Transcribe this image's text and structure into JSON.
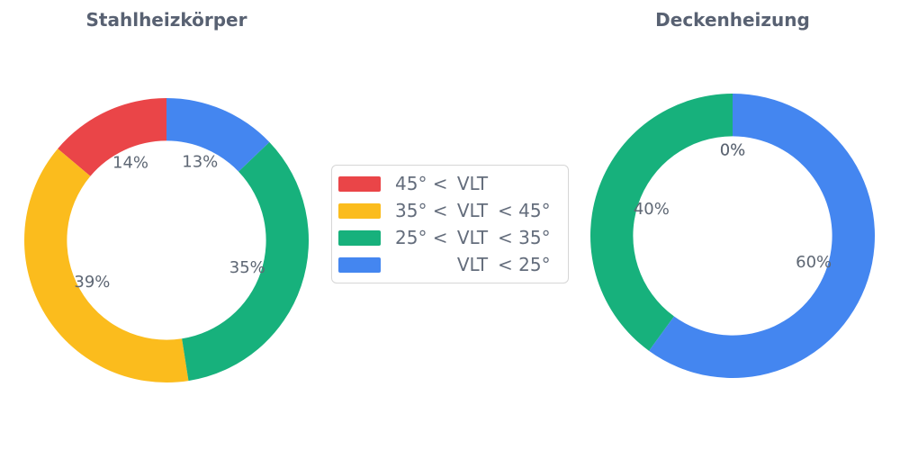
{
  "page": {
    "background_color": "#ffffff",
    "text_color": "#5E6774",
    "title_color": "#586172"
  },
  "chart_data": [
    {
      "type": "pie",
      "subtype": "donut",
      "title": "Stahlheizkörper",
      "labels": [
        "45° < VLT",
        "35° < VLT < 45°",
        "25° < VLT < 35°",
        "VLT < 25°"
      ],
      "values": [
        14,
        39,
        35,
        13
      ],
      "unit": "percent",
      "pct_labels": [
        "14%",
        "39%",
        "35%",
        "13%"
      ],
      "colors": [
        "#EA4548",
        "#FBBC1D",
        "#17B17C",
        "#4486F0"
      ],
      "start_angle": 90,
      "counterclock": true,
      "inner_radius_ratio": 0.7,
      "pct_distance": 0.6
    },
    {
      "type": "pie",
      "subtype": "donut",
      "title": "Deckenheizung",
      "labels": [
        "45° < VLT",
        "35° < VLT < 45°",
        "25° < VLT < 35°",
        "VLT < 25°"
      ],
      "values": [
        0,
        0,
        40,
        60
      ],
      "unit": "percent",
      "pct_labels": [
        "0%",
        "0%",
        "40%",
        "60%"
      ],
      "colors": [
        "#EA4548",
        "#FBBC1D",
        "#17B17C",
        "#4486F0"
      ],
      "start_angle": 90,
      "counterclock": true,
      "inner_radius_ratio": 0.7,
      "pct_distance": 0.6
    }
  ],
  "legend": {
    "position": "center",
    "border_color": "#d6d6d6",
    "items": [
      {
        "label": "45° < VLT",
        "prefix": "45° <",
        "core": "VLT",
        "suffix": "",
        "color": "#EA4548"
      },
      {
        "label": "35° < VLT < 45°",
        "prefix": "35° <",
        "core": "VLT",
        "suffix": "< 45°",
        "color": "#FBBC1D"
      },
      {
        "label": "25° < VLT < 35°",
        "prefix": "25° <",
        "core": "VLT",
        "suffix": "< 35°",
        "color": "#17B17C"
      },
      {
        "label": "VLT < 25°",
        "prefix": "",
        "core": "VLT",
        "suffix": "< 25°",
        "color": "#4486F0"
      }
    ]
  }
}
